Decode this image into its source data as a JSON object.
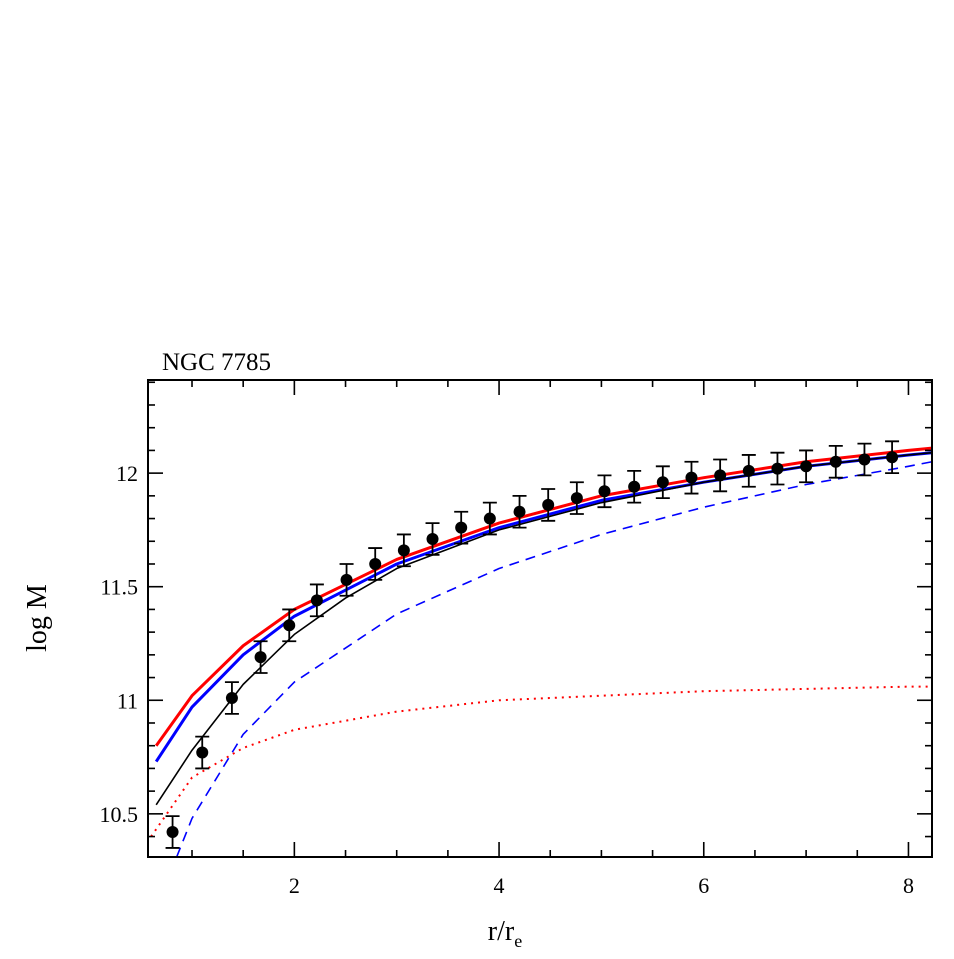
{
  "chart_data": {
    "type": "line",
    "title": "NGC 7785",
    "xlabel": {
      "text": "r/r",
      "subscript": "e"
    },
    "ylabel": "log M",
    "xlim": [
      0.57,
      8.23
    ],
    "ylim": [
      10.31,
      12.41
    ],
    "xticks": [
      2,
      4,
      6,
      8
    ],
    "yticks": [
      10.5,
      11,
      11.5,
      12
    ],
    "xminorticks": [
      1,
      1.5,
      2.5,
      3,
      3.5,
      4.5,
      5,
      5.5,
      6.5,
      7,
      7.5
    ],
    "yminorticks": [
      10.4,
      10.6,
      10.7,
      10.8,
      10.9,
      11.1,
      11.2,
      11.3,
      11.4,
      11.6,
      11.7,
      11.8,
      11.9,
      12.1,
      12.2,
      12.3,
      12.4
    ],
    "series": [
      {
        "color": "#ff0000",
        "style": "solid",
        "width": 3,
        "x": [
          0.65,
          1.0,
          1.5,
          2,
          3,
          4,
          5,
          6,
          7,
          8,
          8.23
        ],
        "values": [
          10.8,
          11.02,
          11.24,
          11.4,
          11.62,
          11.78,
          11.9,
          11.98,
          12.05,
          12.1,
          12.11
        ]
      },
      {
        "color": "#0000ff",
        "style": "solid",
        "width": 3,
        "x": [
          0.65,
          1.0,
          1.5,
          2,
          3,
          4,
          5,
          6,
          7,
          8,
          8.23
        ],
        "values": [
          10.73,
          10.97,
          11.2,
          11.37,
          11.6,
          11.76,
          11.88,
          11.96,
          12.03,
          12.08,
          12.09
        ]
      },
      {
        "color": "#000000",
        "style": "solid",
        "width": 1.6,
        "x": [
          0.65,
          1.0,
          1.5,
          2,
          2.5,
          3,
          4,
          5,
          6,
          7,
          8,
          8.23
        ],
        "values": [
          10.54,
          10.78,
          11.07,
          11.29,
          11.45,
          11.58,
          11.75,
          11.87,
          11.96,
          12.03,
          12.08,
          12.09
        ]
      },
      {
        "color": "#0000ff",
        "style": "dashed",
        "width": 1.6,
        "x": [
          0.85,
          1.0,
          1.5,
          2,
          3,
          4,
          5,
          6,
          7,
          8,
          8.23
        ],
        "values": [
          10.31,
          10.48,
          10.85,
          11.08,
          11.38,
          11.58,
          11.73,
          11.85,
          11.95,
          12.03,
          12.05
        ]
      },
      {
        "color": "#ff0000",
        "style": "dotted",
        "width": 2,
        "x": [
          0.6,
          1.0,
          1.5,
          2,
          3,
          4,
          5,
          6,
          7,
          8,
          8.23
        ],
        "values": [
          10.4,
          10.66,
          10.79,
          10.87,
          10.95,
          11.0,
          11.02,
          11.04,
          11.05,
          11.06,
          11.06
        ]
      }
    ],
    "points": {
      "color": "#000000",
      "x": [
        0.81,
        1.1,
        1.39,
        1.67,
        1.95,
        2.22,
        2.51,
        2.79,
        3.07,
        3.35,
        3.63,
        3.91,
        4.2,
        4.48,
        4.76,
        5.03,
        5.32,
        5.6,
        5.88,
        6.16,
        6.44,
        6.72,
        7.0,
        7.29,
        7.57,
        7.84
      ],
      "values": [
        10.42,
        10.77,
        11.01,
        11.19,
        11.33,
        11.44,
        11.53,
        11.6,
        11.66,
        11.71,
        11.76,
        11.8,
        11.83,
        11.86,
        11.89,
        11.92,
        11.94,
        11.96,
        11.98,
        11.99,
        12.01,
        12.02,
        12.03,
        12.05,
        12.06,
        12.07
      ],
      "errors": [
        0.07,
        0.07,
        0.07,
        0.07,
        0.07,
        0.07,
        0.07,
        0.07,
        0.07,
        0.07,
        0.07,
        0.07,
        0.07,
        0.07,
        0.07,
        0.07,
        0.07,
        0.07,
        0.07,
        0.07,
        0.07,
        0.07,
        0.07,
        0.07,
        0.07,
        0.07
      ]
    }
  }
}
